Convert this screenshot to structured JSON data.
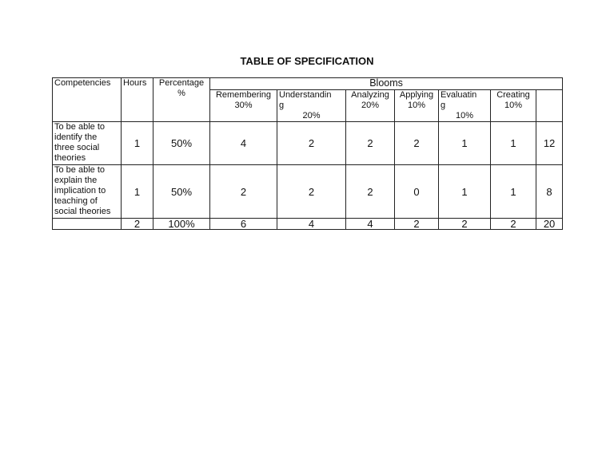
{
  "title": "TABLE OF SPECIFICATION",
  "headers": {
    "competencies": "Competencies",
    "hours": "Hours",
    "percentage": "Percentage\n%",
    "blooms": "Blooms",
    "levels": [
      {
        "name": "Remembering",
        "pct": "30%"
      },
      {
        "name": "Understandin\ng",
        "pct": "20%"
      },
      {
        "name": "Analyzing",
        "pct": "20%"
      },
      {
        "name": "Applying",
        "pct": "10%"
      },
      {
        "name": "Evaluatin\ng",
        "pct": "10%"
      },
      {
        "name": "Creating",
        "pct": "10%"
      }
    ]
  },
  "rows": [
    {
      "competency": "To be able to identify the three social theories",
      "hours": "1",
      "percentage": "50%",
      "values": [
        "4",
        "2",
        "2",
        "2",
        "1",
        "1"
      ],
      "total": "12"
    },
    {
      "competency": "To be able to explain the implication to teaching of social theories",
      "hours": "1",
      "percentage": "50%",
      "values": [
        "2",
        "2",
        "2",
        "0",
        "1",
        "1"
      ],
      "total": "8"
    }
  ],
  "totals": {
    "competency": "",
    "hours": "2",
    "percentage": "100%",
    "values": [
      "6",
      "4",
      "4",
      "2",
      "2",
      "2"
    ],
    "total": "20"
  }
}
